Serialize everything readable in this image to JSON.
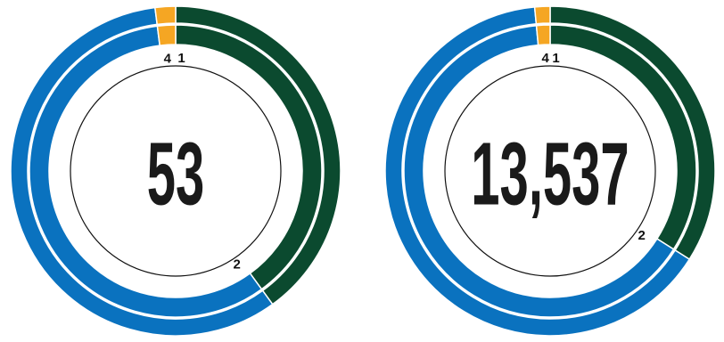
{
  "chart_data": [
    {
      "type": "donut",
      "center_label": "53",
      "values": [
        40,
        58,
        2
      ],
      "colors": [
        "#0b4a2f",
        "#0a72bf",
        "#f5a623"
      ],
      "segment_labels": [
        "1",
        "2",
        "4"
      ]
    },
    {
      "type": "donut",
      "center_label": "13,537",
      "values": [
        34,
        64.5,
        1.5
      ],
      "colors": [
        "#0b4a2f",
        "#0a72bf",
        "#f5a623"
      ],
      "segment_labels": [
        "1",
        "2",
        "4"
      ]
    }
  ]
}
